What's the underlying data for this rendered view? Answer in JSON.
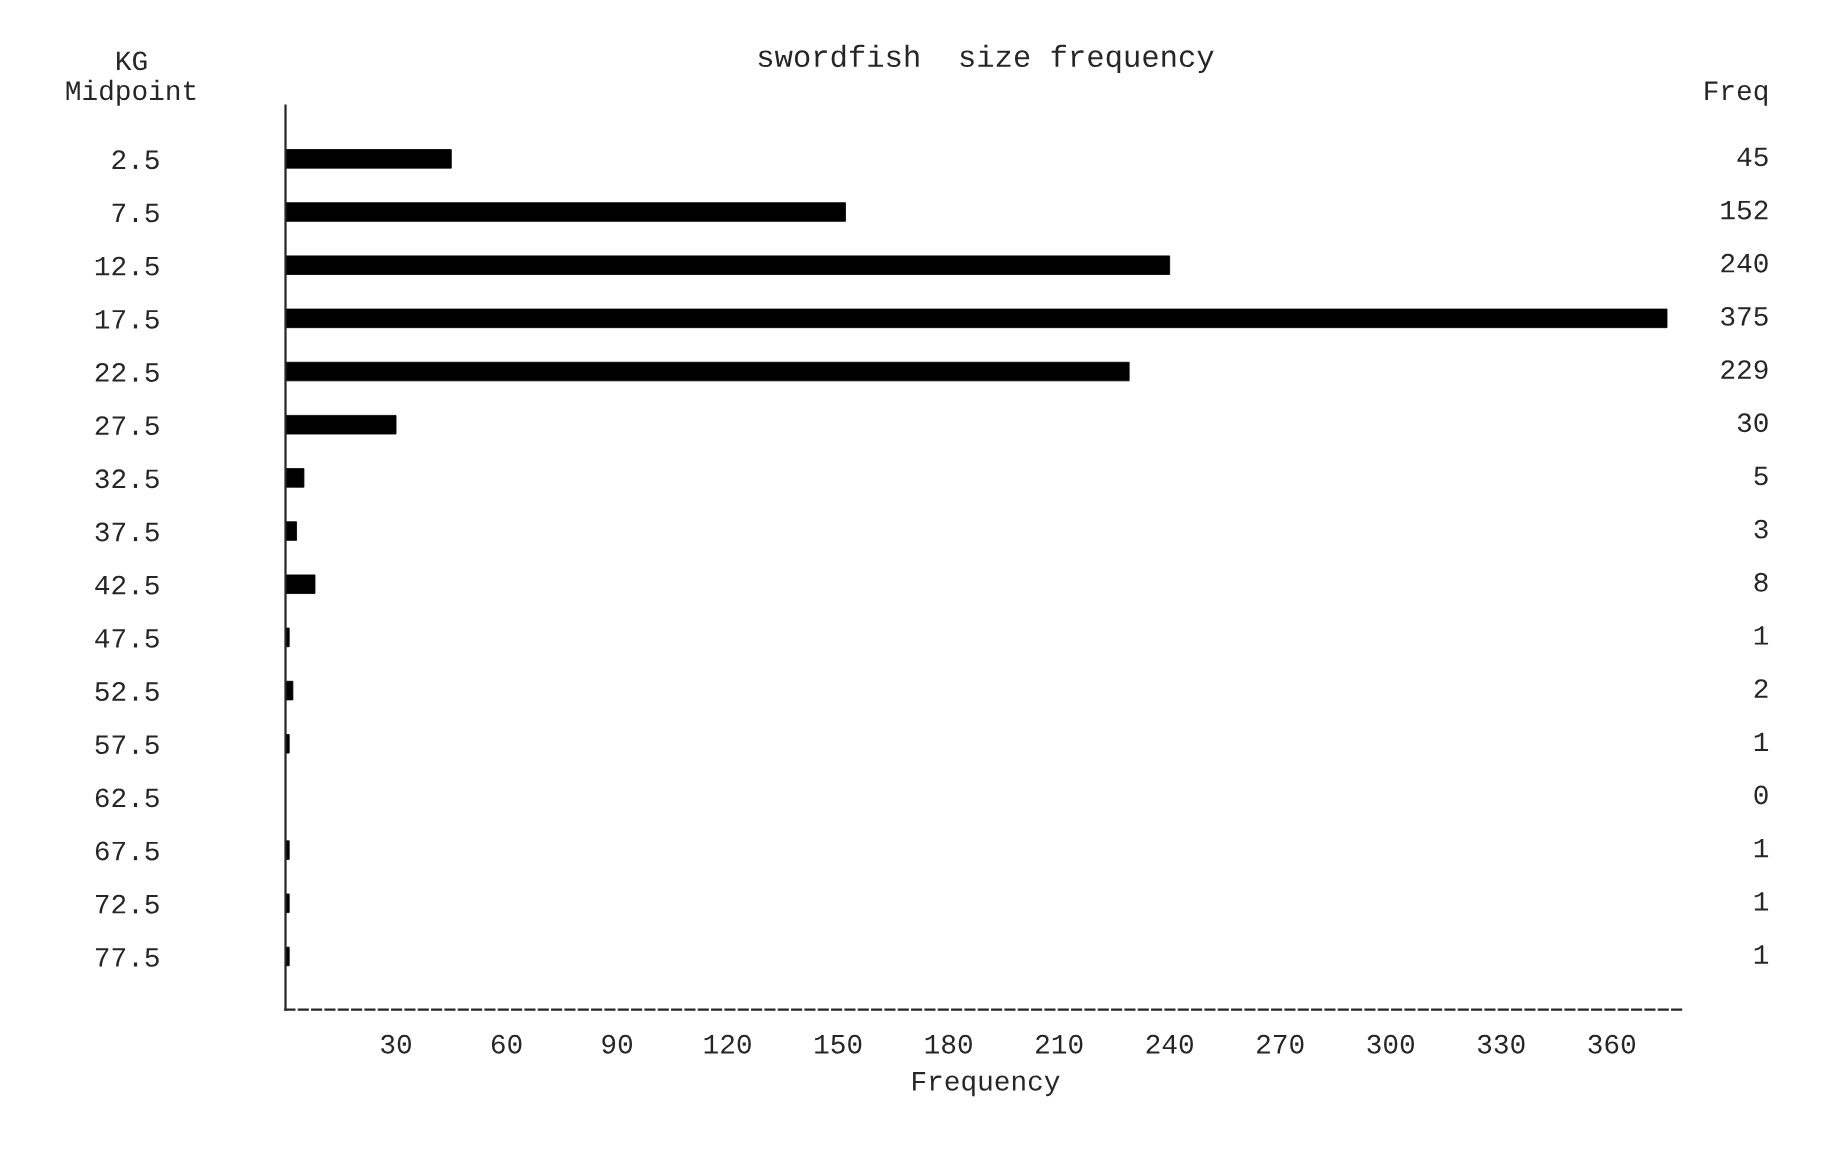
{
  "chart_data": {
    "type": "bar",
    "orientation": "horizontal",
    "title": "swordfish  size frequency",
    "ylabel": "KG\nMidpoint",
    "xlabel": "Frequency",
    "annotations": [
      "Freq"
    ],
    "categories": [
      "2.5",
      "7.5",
      "12.5",
      "17.5",
      "22.5",
      "27.5",
      "32.5",
      "37.5",
      "42.5",
      "47.5",
      "52.5",
      "57.5",
      "62.5",
      "67.5",
      "72.5",
      "77.5"
    ],
    "values": [
      45,
      152,
      240,
      375,
      229,
      30,
      5,
      3,
      8,
      1,
      2,
      1,
      0,
      1,
      1,
      1
    ],
    "color": "#000000",
    "xlim": [
      0,
      380
    ],
    "xticks": [
      30,
      60,
      90,
      120,
      150,
      180,
      210,
      240,
      270,
      300,
      330,
      360
    ],
    "data_labels": true,
    "grid": false,
    "legend": false
  }
}
